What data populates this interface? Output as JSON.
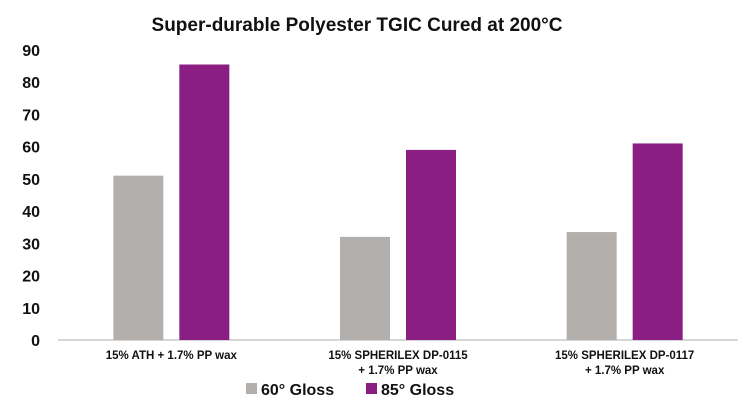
{
  "chart_data": {
    "type": "bar",
    "title": "Super-durable Polyester TGIC Cured at 200°C",
    "categories": [
      [
        "15% ATH + 1.7% PP wax"
      ],
      [
        "15%  SPHERILEX DP-0115",
        "+ 1.7% PP wax"
      ],
      [
        "15%  SPHERILEX DP-0117",
        "+ 1.7% PP wax"
      ]
    ],
    "series": [
      {
        "name": "60° Gloss",
        "values": [
          51,
          32,
          33.5
        ],
        "color": "#b3afac"
      },
      {
        "name": "85° Gloss",
        "values": [
          85.5,
          59,
          61
        ],
        "color": "#8a1e82"
      }
    ],
    "ylim": [
      0,
      90
    ],
    "yticks": [
      "0",
      "10",
      "20",
      "30",
      "40",
      "50",
      "60",
      "70",
      "80",
      "90"
    ],
    "xlabel": "",
    "ylabel": "",
    "grid": false,
    "legend_position": "bottom"
  }
}
